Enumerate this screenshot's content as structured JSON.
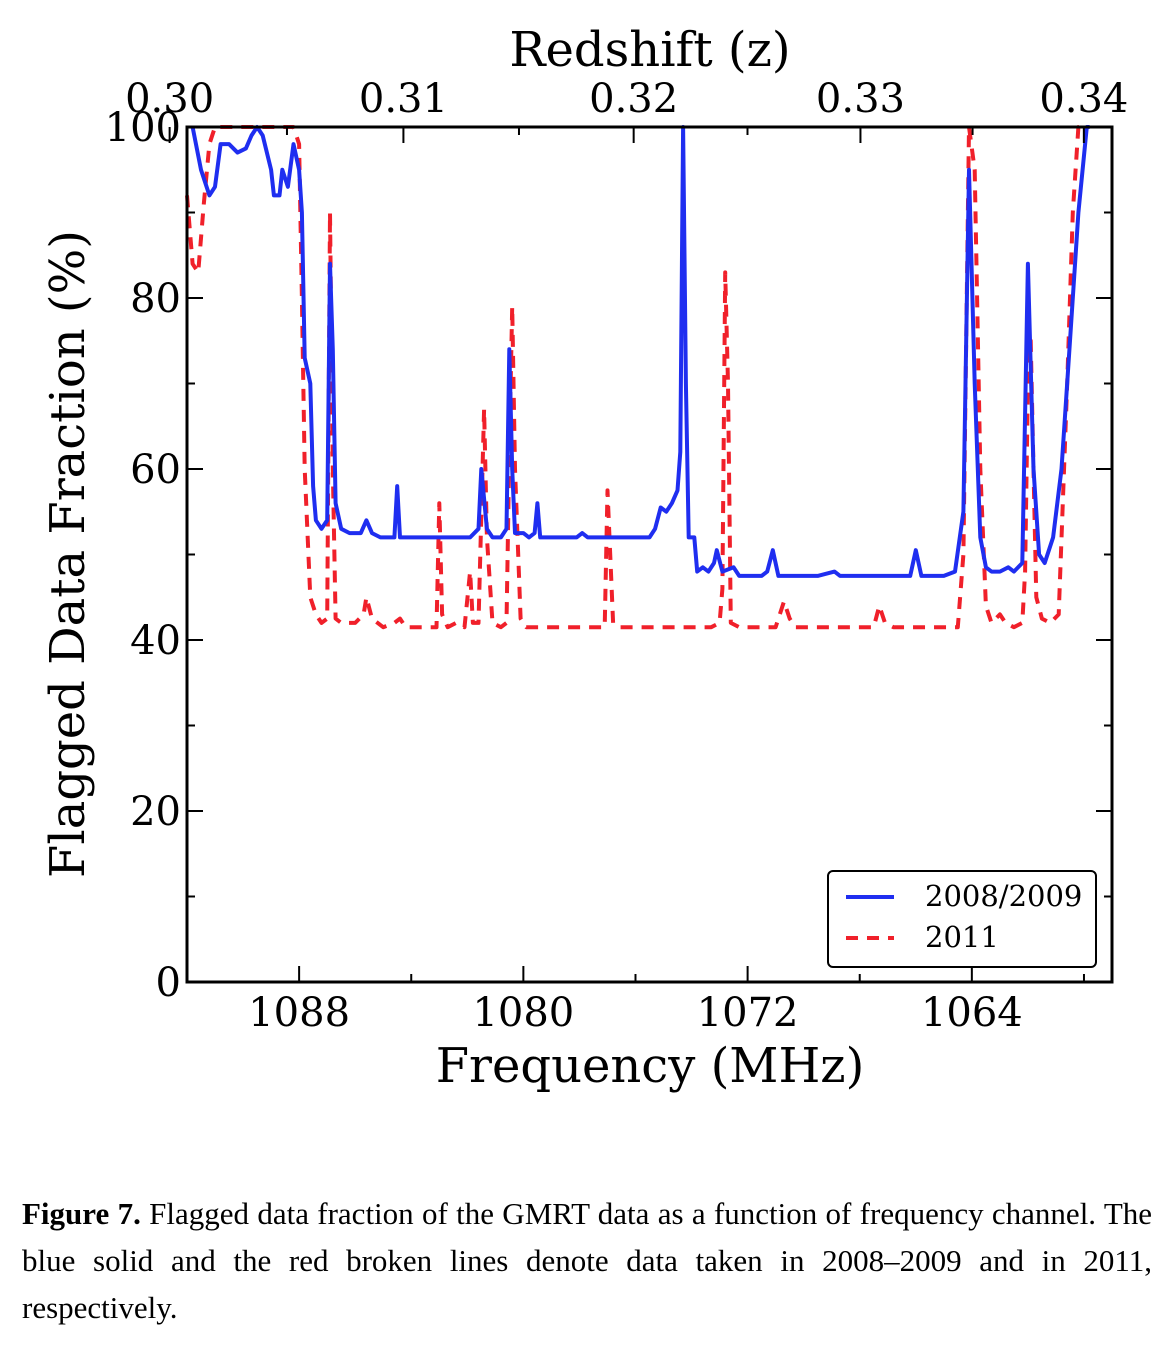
{
  "chart_data": {
    "type": "line",
    "top_axis_label": "Redshift (z)",
    "top_ticks": [
      "0.30",
      "0.31",
      "0.32",
      "0.33",
      "0.34"
    ],
    "top_tick_z": [
      0.3,
      0.31,
      0.32,
      0.33,
      0.34
    ],
    "xlabel": "Frequency (MHz)",
    "ylabel": "Flagged Data Fraction (%)",
    "xlim": [
      1092,
      1059
    ],
    "ylim": [
      0,
      100
    ],
    "x_ticks": [
      1088,
      1080,
      1072,
      1064
    ],
    "x_tick_labels": [
      "1088",
      "1080",
      "1072",
      "1064"
    ],
    "y_ticks": [
      0,
      20,
      40,
      60,
      80,
      100
    ],
    "y_tick_labels": [
      "0",
      "20",
      "40",
      "60",
      "80",
      "100"
    ],
    "legend_position": "lower-right",
    "series": [
      {
        "name": "2008/2009",
        "color": "#1f2ef0",
        "style": "solid",
        "points": [
          [
            1091.8,
            100
          ],
          [
            1091.5,
            95
          ],
          [
            1091.2,
            92
          ],
          [
            1091,
            93
          ],
          [
            1090.8,
            98
          ],
          [
            1090.5,
            98
          ],
          [
            1090.2,
            97
          ],
          [
            1089.9,
            97.5
          ],
          [
            1089.7,
            99
          ],
          [
            1089.5,
            100
          ],
          [
            1089.3,
            99
          ],
          [
            1089,
            95
          ],
          [
            1088.9,
            92
          ],
          [
            1088.7,
            92
          ],
          [
            1088.6,
            95
          ],
          [
            1088.4,
            93
          ],
          [
            1088.2,
            98
          ],
          [
            1088,
            95
          ],
          [
            1087.9,
            90
          ],
          [
            1087.8,
            73
          ],
          [
            1087.6,
            70
          ],
          [
            1087.5,
            58
          ],
          [
            1087.4,
            54
          ],
          [
            1087.2,
            53
          ],
          [
            1087,
            54
          ],
          [
            1086.9,
            84
          ],
          [
            1086.8,
            74
          ],
          [
            1086.7,
            56
          ],
          [
            1086.5,
            53
          ],
          [
            1086.2,
            52.5
          ],
          [
            1085.8,
            52.5
          ],
          [
            1085.6,
            54
          ],
          [
            1085.4,
            52.5
          ],
          [
            1085.1,
            52
          ],
          [
            1084.8,
            52
          ],
          [
            1084.6,
            52
          ],
          [
            1084.5,
            58
          ],
          [
            1084.4,
            52
          ],
          [
            1084.1,
            52
          ],
          [
            1083,
            52
          ],
          [
            1081.9,
            52
          ],
          [
            1081.6,
            53
          ],
          [
            1081.5,
            60
          ],
          [
            1081.3,
            53
          ],
          [
            1081.1,
            52
          ],
          [
            1080.8,
            52
          ],
          [
            1080.6,
            53
          ],
          [
            1080.5,
            74
          ],
          [
            1080.4,
            60
          ],
          [
            1080.3,
            52.5
          ],
          [
            1080,
            52.5
          ],
          [
            1079.8,
            52
          ],
          [
            1079.6,
            52.5
          ],
          [
            1079.5,
            56
          ],
          [
            1079.4,
            52
          ],
          [
            1078.8,
            52
          ],
          [
            1078.1,
            52
          ],
          [
            1077.9,
            52.5
          ],
          [
            1077.7,
            52
          ],
          [
            1076,
            52
          ],
          [
            1075.5,
            52
          ],
          [
            1075.3,
            53
          ],
          [
            1075.1,
            55.5
          ],
          [
            1074.9,
            55
          ],
          [
            1074.7,
            56
          ],
          [
            1074.5,
            57.5
          ],
          [
            1074.4,
            62
          ],
          [
            1074.3,
            100
          ],
          [
            1074.2,
            70
          ],
          [
            1074.1,
            52
          ],
          [
            1073.9,
            52
          ],
          [
            1073.8,
            48
          ],
          [
            1073.6,
            48.5
          ],
          [
            1073.4,
            48
          ],
          [
            1073.2,
            49
          ],
          [
            1073.1,
            50.5
          ],
          [
            1072.9,
            48
          ],
          [
            1072.5,
            48.5
          ],
          [
            1072.3,
            47.5
          ],
          [
            1071.5,
            47.5
          ],
          [
            1071.3,
            48
          ],
          [
            1071.1,
            50.5
          ],
          [
            1070.9,
            47.5
          ],
          [
            1069.5,
            47.5
          ],
          [
            1068.9,
            48
          ],
          [
            1068.7,
            47.5
          ],
          [
            1066.5,
            47.5
          ],
          [
            1066.2,
            47.5
          ],
          [
            1066,
            50.5
          ],
          [
            1065.8,
            47.5
          ],
          [
            1065,
            47.5
          ],
          [
            1064.6,
            48
          ],
          [
            1064.3,
            55
          ],
          [
            1064.1,
            95
          ],
          [
            1063.9,
            70
          ],
          [
            1063.7,
            52
          ],
          [
            1063.5,
            48.5
          ],
          [
            1063.3,
            48
          ],
          [
            1063,
            48
          ],
          [
            1062.7,
            48.5
          ],
          [
            1062.5,
            48
          ],
          [
            1062.2,
            49
          ],
          [
            1062,
            84
          ],
          [
            1061.8,
            60
          ],
          [
            1061.6,
            50
          ],
          [
            1061.4,
            49
          ],
          [
            1061.1,
            52
          ],
          [
            1060.8,
            60
          ],
          [
            1060.5,
            75
          ],
          [
            1060.2,
            90
          ],
          [
            1059.9,
            100
          ],
          [
            1059.8,
            100
          ]
        ]
      },
      {
        "name": "2011",
        "color": "#f0202a",
        "style": "dashed",
        "points": [
          [
            1092,
            92
          ],
          [
            1091.8,
            84
          ],
          [
            1091.6,
            83
          ],
          [
            1091.4,
            91
          ],
          [
            1091.2,
            98
          ],
          [
            1091,
            100
          ],
          [
            1090.5,
            100
          ],
          [
            1090,
            100
          ],
          [
            1089.5,
            100
          ],
          [
            1089,
            100
          ],
          [
            1088.5,
            100
          ],
          [
            1088.2,
            100
          ],
          [
            1088,
            98
          ],
          [
            1087.9,
            80
          ],
          [
            1087.8,
            60
          ],
          [
            1087.6,
            45
          ],
          [
            1087.4,
            43
          ],
          [
            1087.2,
            42
          ],
          [
            1087,
            42.5
          ],
          [
            1086.9,
            90
          ],
          [
            1086.8,
            60
          ],
          [
            1086.7,
            42.5
          ],
          [
            1086.5,
            42
          ],
          [
            1086.2,
            42
          ],
          [
            1086,
            42
          ],
          [
            1085.7,
            43
          ],
          [
            1085.6,
            45
          ],
          [
            1085.4,
            42.5
          ],
          [
            1085,
            41.5
          ],
          [
            1084.6,
            42
          ],
          [
            1084.4,
            42.5
          ],
          [
            1084.2,
            41.5
          ],
          [
            1083.5,
            41.5
          ],
          [
            1083.1,
            41.5
          ],
          [
            1083,
            56
          ],
          [
            1082.9,
            43
          ],
          [
            1082.7,
            41.5
          ],
          [
            1082.4,
            42
          ],
          [
            1082.1,
            41.5
          ],
          [
            1081.9,
            48
          ],
          [
            1081.8,
            42
          ],
          [
            1081.6,
            42
          ],
          [
            1081.4,
            67
          ],
          [
            1081.3,
            52
          ],
          [
            1081.1,
            42
          ],
          [
            1080.8,
            41.5
          ],
          [
            1080.6,
            42
          ],
          [
            1080.5,
            62
          ],
          [
            1080.4,
            79
          ],
          [
            1080.3,
            60
          ],
          [
            1080.1,
            42.5
          ],
          [
            1079.9,
            41.5
          ],
          [
            1078.5,
            41.5
          ],
          [
            1077.1,
            41.5
          ],
          [
            1077,
            57.5
          ],
          [
            1076.8,
            42
          ],
          [
            1076.6,
            41.5
          ],
          [
            1074,
            41.5
          ],
          [
            1073.3,
            41.5
          ],
          [
            1073,
            42
          ],
          [
            1072.9,
            46
          ],
          [
            1072.8,
            83
          ],
          [
            1072.7,
            70
          ],
          [
            1072.6,
            42
          ],
          [
            1072.3,
            41.5
          ],
          [
            1071,
            41.5
          ],
          [
            1070.7,
            44.5
          ],
          [
            1070.5,
            42.5
          ],
          [
            1070.3,
            41.5
          ],
          [
            1068.5,
            41.5
          ],
          [
            1067.5,
            41.5
          ],
          [
            1067.3,
            44
          ],
          [
            1067.1,
            42
          ],
          [
            1066.8,
            41.5
          ],
          [
            1064.5,
            41.5
          ],
          [
            1064.3,
            50
          ],
          [
            1064.1,
            100
          ],
          [
            1063.9,
            95
          ],
          [
            1063.7,
            60
          ],
          [
            1063.5,
            44
          ],
          [
            1063.3,
            42
          ],
          [
            1063,
            43
          ],
          [
            1062.8,
            42
          ],
          [
            1062.5,
            41.5
          ],
          [
            1062.2,
            42
          ],
          [
            1062.1,
            48
          ],
          [
            1062,
            70
          ],
          [
            1061.9,
            75
          ],
          [
            1061.8,
            60
          ],
          [
            1061.7,
            45
          ],
          [
            1061.5,
            42.5
          ],
          [
            1061.2,
            42
          ],
          [
            1060.9,
            43
          ],
          [
            1060.6,
            70
          ],
          [
            1060.4,
            90
          ],
          [
            1060.2,
            100
          ],
          [
            1059.9,
            100
          ]
        ]
      }
    ]
  },
  "caption": {
    "label": "Figure 7.",
    "text": " Flagged data fraction of the GMRT data as a function of frequency channel. The blue solid and the red broken lines denote data taken in 2008–2009 and in 2011, respectively."
  }
}
